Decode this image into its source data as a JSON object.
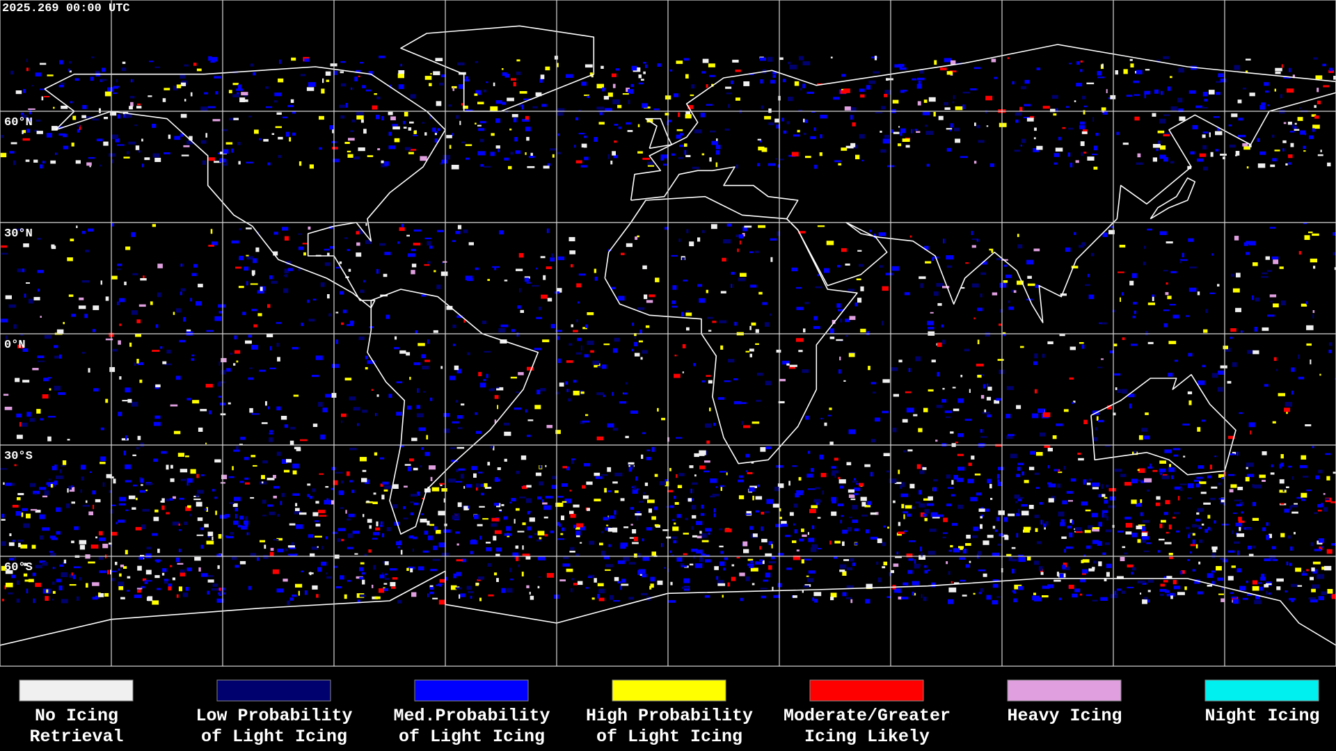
{
  "header": {
    "timestamp": "2025.269 00:00 UTC"
  },
  "map": {
    "lat_labels": [
      "60°N",
      "30°N",
      "0°N",
      "30°S",
      "60°S"
    ]
  },
  "legend": {
    "items": [
      {
        "lines": [
          "No Icing",
          "Retrieval"
        ],
        "color": "#f0f0f0"
      },
      {
        "lines": [
          "Low Probability",
          "of Light Icing"
        ],
        "color": "#00006e"
      },
      {
        "lines": [
          "Med.Probability",
          "of Light Icing"
        ],
        "color": "#0000ff"
      },
      {
        "lines": [
          "High Probability",
          "of Light Icing"
        ],
        "color": "#ffff00"
      },
      {
        "lines": [
          "Moderate/Greater",
          "Icing Likely"
        ],
        "color": "#ff0000"
      },
      {
        "lines": [
          "Heavy Icing"
        ],
        "color": "#e0a0e0"
      },
      {
        "lines": [
          "Night Icing"
        ],
        "color": "#00f0f0"
      }
    ]
  }
}
